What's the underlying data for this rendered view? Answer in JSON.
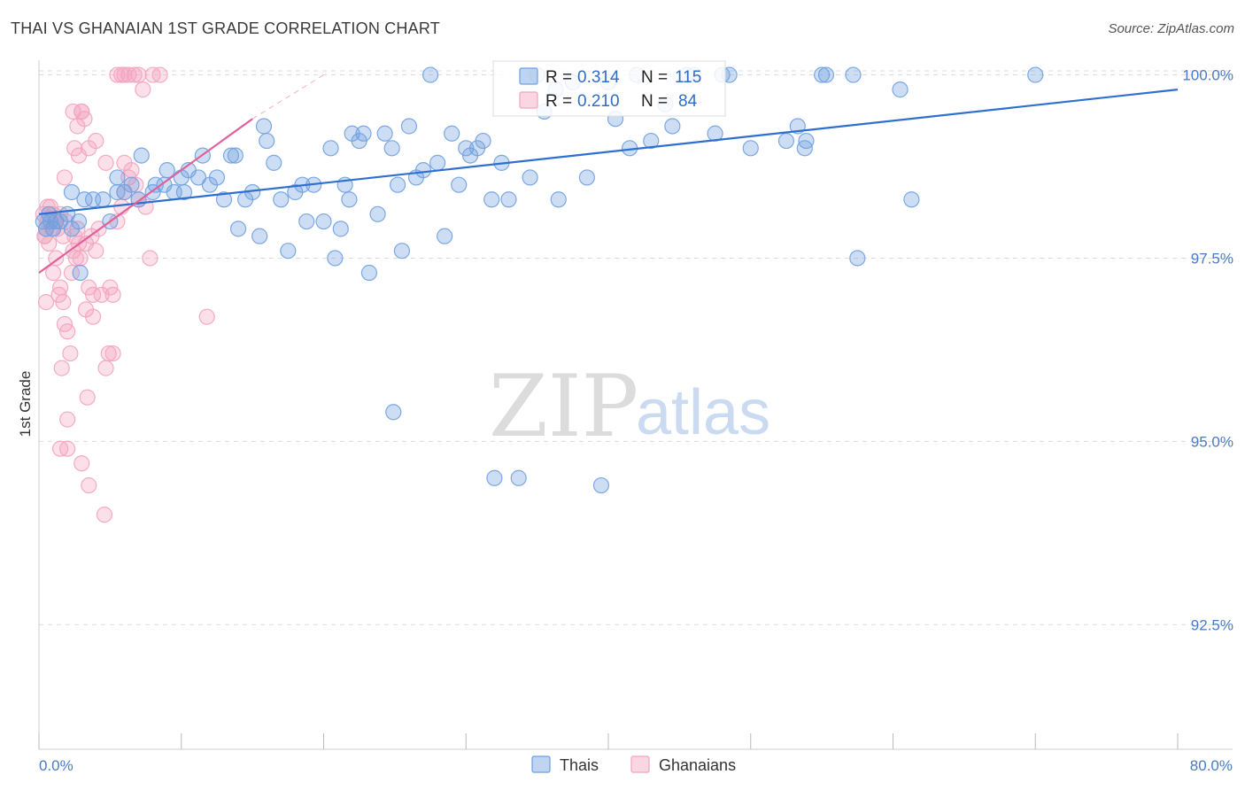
{
  "header": {
    "title": "THAI VS GHANAIAN 1ST GRADE CORRELATION CHART",
    "source": "Source: ZipAtlas.com"
  },
  "watermark": {
    "zip": "ZIP",
    "atlas": "atlas"
  },
  "chart_data": {
    "type": "scatter",
    "title": "THAI VS GHANAIAN 1ST GRADE CORRELATION CHART",
    "xlabel": "",
    "ylabel": "1st Grade",
    "xlim": [
      0,
      80
    ],
    "ylim": [
      90.8,
      100.2
    ],
    "x_tick_labels": [
      "0.0%",
      "80.0%"
    ],
    "y_ticks": [
      92.5,
      95.0,
      97.5,
      100.0
    ],
    "y_tick_labels": [
      "92.5%",
      "95.0%",
      "97.5%",
      "100.0%"
    ],
    "grid": true,
    "legend_position": "bottom-center",
    "stats": [
      {
        "series": "Thais",
        "r_label": "R =",
        "r": "0.314",
        "n_label": "N =",
        "n": "115"
      },
      {
        "series": "Ghanaians",
        "r_label": "R =",
        "r": "0.210",
        "n_label": "N =",
        "n": "84"
      }
    ],
    "series": [
      {
        "name": "Thais",
        "color": "#6fa0e0",
        "line_color": "#2e6fcf",
        "trend": {
          "x0": 0,
          "y0": 98.1,
          "x1": 80,
          "y1": 99.8,
          "dashed_to": null
        },
        "points": [
          [
            0.3,
            98.0
          ],
          [
            0.5,
            97.9
          ],
          [
            0.7,
            98.1
          ],
          [
            0.8,
            98.0
          ],
          [
            1.0,
            97.9
          ],
          [
            1.2,
            98.0
          ],
          [
            1.5,
            98.0
          ],
          [
            2.0,
            98.1
          ],
          [
            2.3,
            97.9
          ],
          [
            2.8,
            98.0
          ],
          [
            2.3,
            98.4
          ],
          [
            3.2,
            98.3
          ],
          [
            3.8,
            98.3
          ],
          [
            4.5,
            98.3
          ],
          [
            5.0,
            98.0
          ],
          [
            5.5,
            98.4
          ],
          [
            2.9,
            97.3
          ],
          [
            5.5,
            98.6
          ],
          [
            6.0,
            98.4
          ],
          [
            6.5,
            98.5
          ],
          [
            7.0,
            98.3
          ],
          [
            7.2,
            98.9
          ],
          [
            8.2,
            98.5
          ],
          [
            8.8,
            98.5
          ],
          [
            8.0,
            98.4
          ],
          [
            9.0,
            98.7
          ],
          [
            9.5,
            98.4
          ],
          [
            10.0,
            98.6
          ],
          [
            10.2,
            98.4
          ],
          [
            10.5,
            98.7
          ],
          [
            11.2,
            98.6
          ],
          [
            11.5,
            98.9
          ],
          [
            12.0,
            98.5
          ],
          [
            12.5,
            98.6
          ],
          [
            13.0,
            98.3
          ],
          [
            13.5,
            98.9
          ],
          [
            13.8,
            98.9
          ],
          [
            14.0,
            97.9
          ],
          [
            14.5,
            98.3
          ],
          [
            15.0,
            98.4
          ],
          [
            15.5,
            97.8
          ],
          [
            15.8,
            99.3
          ],
          [
            16.0,
            99.1
          ],
          [
            16.5,
            98.8
          ],
          [
            17.0,
            98.3
          ],
          [
            17.5,
            97.6
          ],
          [
            18.0,
            98.4
          ],
          [
            18.5,
            98.5
          ],
          [
            18.8,
            98.0
          ],
          [
            19.3,
            98.5
          ],
          [
            20.0,
            98.0
          ],
          [
            20.5,
            99.0
          ],
          [
            20.8,
            97.5
          ],
          [
            21.2,
            97.9
          ],
          [
            21.5,
            98.5
          ],
          [
            21.8,
            98.3
          ],
          [
            22.0,
            99.2
          ],
          [
            22.5,
            99.1
          ],
          [
            22.8,
            99.2
          ],
          [
            23.2,
            97.3
          ],
          [
            23.8,
            98.1
          ],
          [
            24.3,
            99.2
          ],
          [
            24.8,
            99.0
          ],
          [
            24.9,
            95.4
          ],
          [
            25.2,
            98.5
          ],
          [
            25.5,
            97.6
          ],
          [
            26.0,
            99.3
          ],
          [
            26.5,
            98.6
          ],
          [
            27.0,
            98.7
          ],
          [
            27.5,
            100.0
          ],
          [
            28.0,
            98.8
          ],
          [
            28.5,
            97.8
          ],
          [
            29.0,
            99.2
          ],
          [
            29.5,
            98.5
          ],
          [
            30.0,
            99.0
          ],
          [
            30.3,
            98.9
          ],
          [
            30.8,
            99.0
          ],
          [
            31.2,
            99.1
          ],
          [
            31.8,
            98.3
          ],
          [
            32.0,
            94.5
          ],
          [
            32.5,
            98.8
          ],
          [
            33.0,
            98.3
          ],
          [
            33.7,
            94.5
          ],
          [
            34.5,
            98.6
          ],
          [
            35.0,
            100.0
          ],
          [
            35.5,
            99.5
          ],
          [
            36.3,
            99.8
          ],
          [
            36.5,
            98.3
          ],
          [
            37.5,
            99.9
          ],
          [
            38.5,
            98.6
          ],
          [
            39.5,
            94.4
          ],
          [
            40.0,
            99.9
          ],
          [
            40.5,
            99.4
          ],
          [
            41.5,
            99.0
          ],
          [
            42.0,
            100.0
          ],
          [
            43.0,
            99.1
          ],
          [
            44.0,
            99.6
          ],
          [
            44.5,
            99.3
          ],
          [
            45.5,
            100.0
          ],
          [
            46.0,
            100.0
          ],
          [
            47.5,
            99.2
          ],
          [
            48.0,
            100.0
          ],
          [
            48.5,
            100.0
          ],
          [
            50.0,
            99.0
          ],
          [
            52.5,
            99.1
          ],
          [
            53.3,
            99.3
          ],
          [
            53.8,
            99.0
          ],
          [
            53.9,
            99.1
          ],
          [
            55.0,
            100.0
          ],
          [
            55.3,
            100.0
          ],
          [
            57.2,
            100.0
          ],
          [
            57.5,
            97.5
          ],
          [
            60.5,
            99.8
          ],
          [
            61.3,
            98.3
          ],
          [
            70.0,
            100.0
          ]
        ]
      },
      {
        "name": "Ghanaians",
        "color": "#f4a3bf",
        "line_color": "#e0609a",
        "trend": {
          "x0": 0,
          "y0": 97.3,
          "x1": 15,
          "y1": 99.4,
          "dashed_to": {
            "x": 20,
            "y": 100.0
          }
        },
        "points": [
          [
            0.3,
            98.1
          ],
          [
            0.4,
            97.8
          ],
          [
            0.5,
            97.9
          ],
          [
            0.6,
            98.0
          ],
          [
            0.7,
            97.7
          ],
          [
            0.8,
            98.2
          ],
          [
            0.9,
            97.9
          ],
          [
            1.0,
            98.1
          ],
          [
            1.2,
            98.0
          ],
          [
            1.3,
            97.9
          ],
          [
            1.5,
            98.1
          ],
          [
            1.7,
            97.8
          ],
          [
            1.9,
            98.0
          ],
          [
            0.5,
            96.9
          ],
          [
            1.0,
            97.3
          ],
          [
            1.2,
            97.5
          ],
          [
            1.4,
            97.0
          ],
          [
            1.5,
            97.1
          ],
          [
            1.7,
            96.9
          ],
          [
            1.8,
            96.6
          ],
          [
            2.0,
            96.5
          ],
          [
            2.2,
            96.2
          ],
          [
            2.4,
            97.6
          ],
          [
            2.5,
            97.8
          ],
          [
            2.6,
            97.5
          ],
          [
            2.8,
            97.7
          ],
          [
            1.6,
            96.0
          ],
          [
            2.0,
            95.3
          ],
          [
            1.5,
            94.9
          ],
          [
            2.0,
            94.9
          ],
          [
            3.0,
            94.7
          ],
          [
            3.3,
            96.8
          ],
          [
            3.5,
            97.1
          ],
          [
            3.8,
            97.0
          ],
          [
            3.4,
            95.6
          ],
          [
            3.5,
            94.4
          ],
          [
            3.7,
            97.8
          ],
          [
            4.0,
            97.6
          ],
          [
            4.2,
            97.9
          ],
          [
            4.4,
            97.0
          ],
          [
            4.7,
            96.0
          ],
          [
            4.9,
            96.2
          ],
          [
            5.0,
            97.1
          ],
          [
            5.2,
            96.2
          ],
          [
            5.5,
            98.0
          ],
          [
            5.8,
            98.2
          ],
          [
            6.0,
            98.4
          ],
          [
            6.3,
            98.6
          ],
          [
            6.5,
            98.7
          ],
          [
            6.8,
            98.5
          ],
          [
            7.0,
            98.3
          ],
          [
            7.5,
            98.2
          ],
          [
            7.8,
            97.5
          ],
          [
            2.4,
            99.5
          ],
          [
            2.7,
            99.3
          ],
          [
            3.0,
            99.5
          ],
          [
            3.2,
            99.4
          ],
          [
            3.5,
            99.0
          ],
          [
            4.0,
            99.1
          ],
          [
            1.8,
            98.6
          ],
          [
            2.5,
            99.0
          ],
          [
            2.8,
            98.9
          ],
          [
            3.0,
            99.5
          ],
          [
            5.5,
            100.0
          ],
          [
            5.8,
            100.0
          ],
          [
            6.0,
            100.0
          ],
          [
            6.3,
            100.0
          ],
          [
            6.7,
            100.0
          ],
          [
            7.0,
            100.0
          ],
          [
            8.0,
            100.0
          ],
          [
            8.5,
            100.0
          ],
          [
            7.3,
            99.8
          ],
          [
            2.9,
            97.5
          ],
          [
            0.4,
            97.8
          ],
          [
            0.6,
            98.2
          ],
          [
            3.3,
            97.7
          ],
          [
            4.7,
            98.8
          ],
          [
            5.2,
            97.0
          ],
          [
            6.0,
            98.8
          ],
          [
            11.8,
            96.7
          ],
          [
            2.7,
            97.9
          ],
          [
            3.8,
            96.7
          ],
          [
            4.6,
            94.0
          ],
          [
            2.3,
            97.3
          ]
        ]
      }
    ]
  },
  "colors": {
    "thais_fill": "#6fa0e0",
    "thais_line": "#2e6fcf",
    "ghanaians_fill": "#f4a3bf",
    "ghanaians_line": "#e0609a",
    "grid": "#dcdcdc",
    "tick_text": "#4a7ac7"
  }
}
